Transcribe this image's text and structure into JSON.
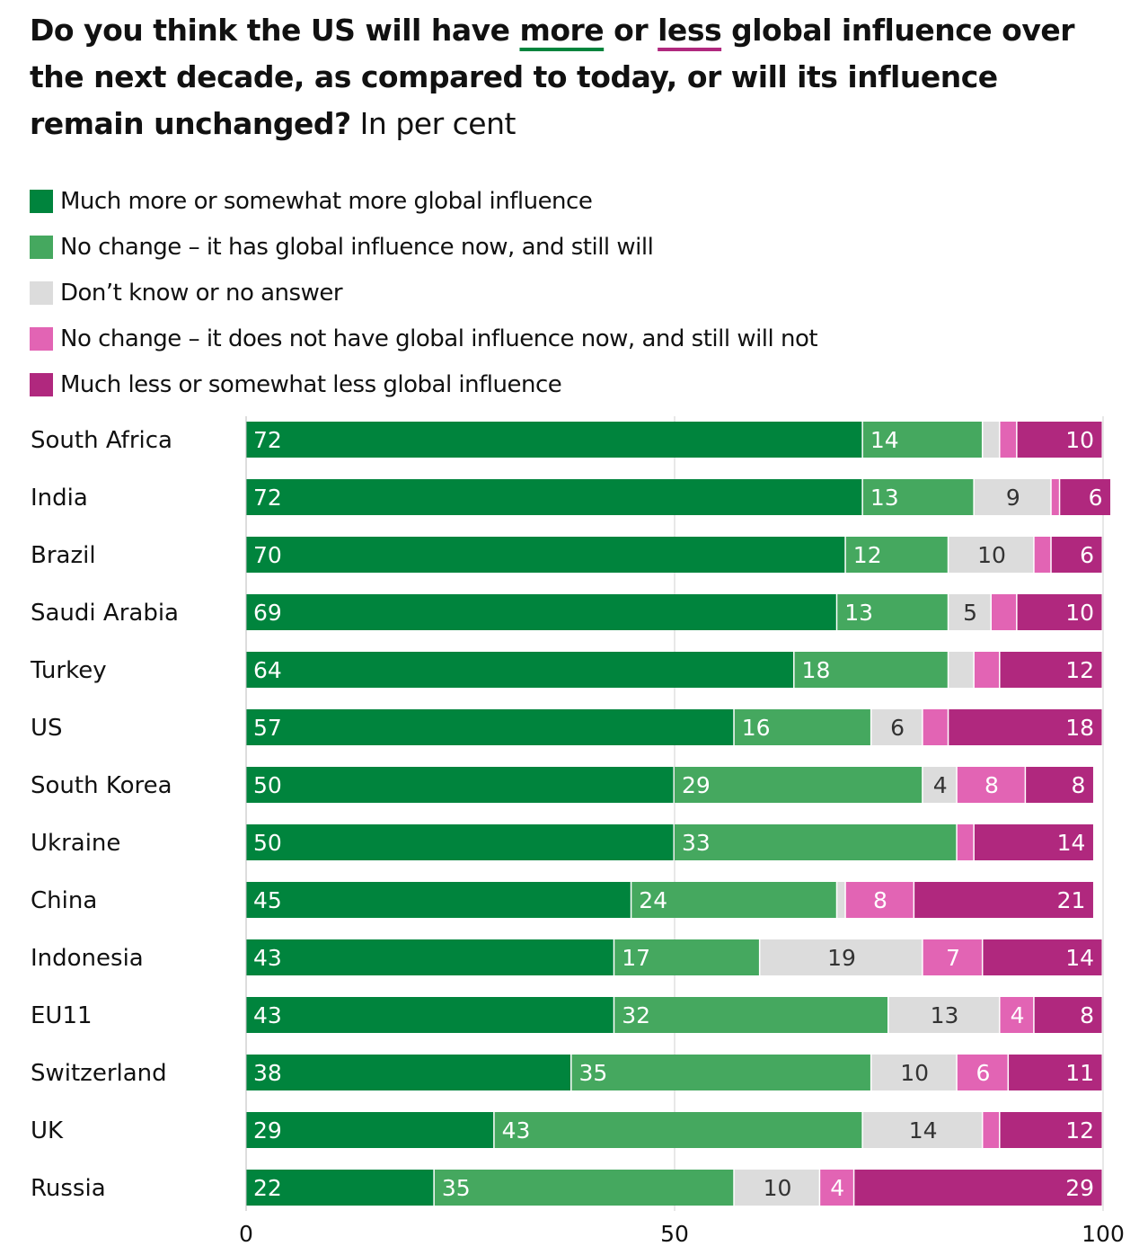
{
  "title": {
    "part1": "Do you think the US will have ",
    "more": "more",
    "part2": " or ",
    "less": "less",
    "part3": " global influence over the next decade, as compared to today, or will its influence remain unchanged?",
    "subtitle": " In per cent"
  },
  "chart_data": {
    "type": "bar",
    "orientation": "horizontal-stacked",
    "title": "Do you think the US will have more or less global influence over the next decade, as compared to today, or will its influence remain unchanged? In per cent",
    "xlim": [
      0,
      100
    ],
    "xticks": [
      "0",
      "50",
      "100"
    ],
    "legend_placement": "top-left",
    "colors": [
      "#00843d",
      "#45a85f",
      "#dcdcdc",
      "#e264b4",
      "#b0287e"
    ],
    "label_colors": [
      "#ffffff",
      "#ffffff",
      "#333333",
      "#ffffff",
      "#ffffff"
    ],
    "series_names": [
      "Much more or somewhat more global influence",
      "No change – it has global influence now, and still will",
      "Don’t know or no answer",
      "No change – it does not have global influence now, and still will not",
      "Much less or somewhat less global influence"
    ],
    "categories": [
      "South Africa",
      "India",
      "Brazil",
      "Saudi Arabia",
      "Turkey",
      "US",
      "South Korea",
      "Ukraine",
      "China",
      "Indonesia",
      "EU11",
      "Switzerland",
      "UK",
      "Russia"
    ],
    "values": [
      [
        72,
        14,
        2,
        2,
        10
      ],
      [
        72,
        13,
        9,
        1,
        6
      ],
      [
        70,
        12,
        10,
        2,
        6
      ],
      [
        69,
        13,
        5,
        3,
        10
      ],
      [
        64,
        18,
        3,
        3,
        12
      ],
      [
        57,
        16,
        6,
        3,
        18
      ],
      [
        50,
        29,
        4,
        8,
        8
      ],
      [
        50,
        33,
        0,
        2,
        14
      ],
      [
        45,
        24,
        1,
        8,
        21
      ],
      [
        43,
        17,
        19,
        7,
        14
      ],
      [
        43,
        32,
        13,
        4,
        8
      ],
      [
        38,
        35,
        10,
        6,
        11
      ],
      [
        29,
        43,
        14,
        2,
        12
      ],
      [
        22,
        35,
        10,
        4,
        29
      ]
    ]
  }
}
